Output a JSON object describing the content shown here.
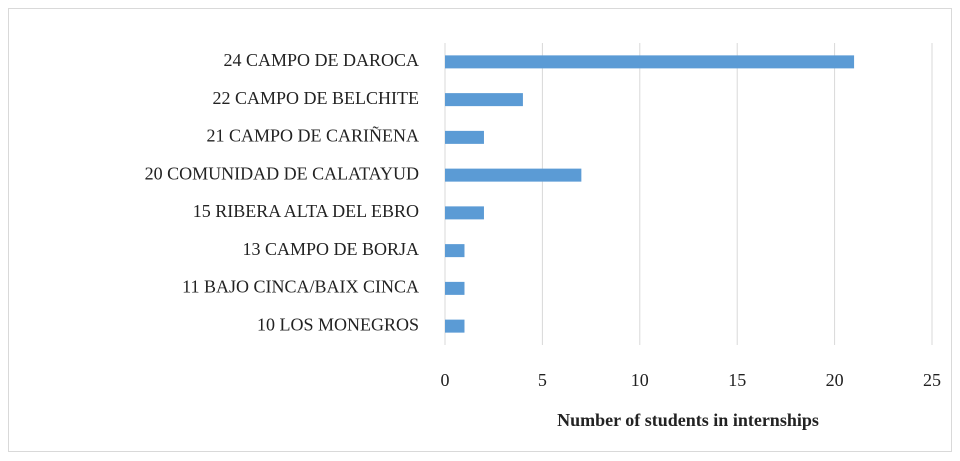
{
  "chart_data": {
    "type": "bar",
    "orientation": "horizontal",
    "x_label": "Number of students in internships",
    "categories": [
      "24 CAMPO DE DAROCA",
      "22 CAMPO DE BELCHITE",
      "21 CAMPO DE CARIÑENA",
      "20 COMUNIDAD DE CALATAYUD",
      "15 RIBERA ALTA DEL EBRO",
      "13 CAMPO DE BORJA",
      "11 BAJO CINCA/BAIX CINCA",
      "10 LOS MONEGROS"
    ],
    "values": [
      21,
      4,
      2,
      7,
      2,
      1,
      1,
      1
    ],
    "color": "#5b9bd5",
    "xlim": [
      0,
      25
    ],
    "xticks": [
      0,
      5,
      10,
      15,
      20,
      25
    ],
    "grid": true
  }
}
